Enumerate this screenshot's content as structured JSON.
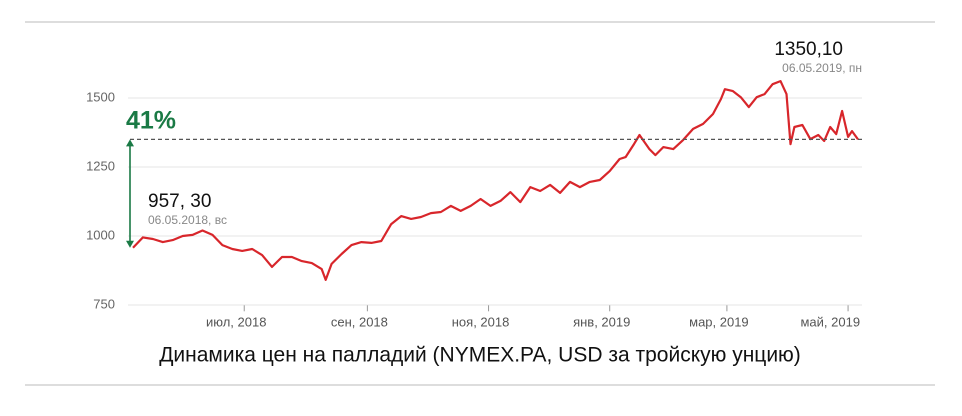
{
  "chart_data": {
    "type": "line",
    "caption": "Динамика цен на палладий (NYMEX.PA, USD за тройскую унцию)",
    "x": [
      0,
      5,
      10,
      15,
      20,
      25,
      30,
      35,
      40,
      45,
      50,
      55,
      60,
      65,
      70,
      75,
      80,
      85,
      90,
      95,
      97,
      100,
      105,
      110,
      115,
      120,
      125,
      130,
      135,
      140,
      145,
      150,
      155,
      160,
      165,
      170,
      175,
      180,
      185,
      190,
      195,
      200,
      205,
      210,
      215,
      220,
      225,
      230,
      235,
      240,
      245,
      248,
      252,
      255,
      260,
      263,
      267,
      272,
      277,
      282,
      287,
      292,
      296,
      298,
      302,
      306,
      310,
      314,
      318,
      322,
      326,
      329,
      331,
      333,
      337,
      341,
      345,
      348,
      351,
      354,
      357,
      360,
      362,
      365
    ],
    "series": [
      {
        "name": "NYMEX.PA",
        "color": "#d8262b",
        "values": [
          957.3,
          995,
          989,
          978,
          985,
          1000,
          1004,
          1020,
          1004,
          967,
          953,
          946,
          953,
          931,
          888,
          924,
          924,
          909,
          902,
          880,
          841,
          899,
          935,
          967,
          978,
          975,
          982,
          1043,
          1072,
          1062,
          1069,
          1083,
          1087,
          1109,
          1091,
          1109,
          1134,
          1109,
          1127,
          1159,
          1123,
          1177,
          1163,
          1185,
          1156,
          1196,
          1177,
          1196,
          1203,
          1235,
          1279,
          1286,
          1330,
          1366,
          1315,
          1293,
          1322,
          1315,
          1348,
          1388,
          1406,
          1442,
          1496,
          1532,
          1525,
          1503,
          1467,
          1503,
          1514,
          1550,
          1561,
          1514,
          1333,
          1395,
          1402,
          1351,
          1366,
          1344,
          1395,
          1369,
          1453,
          1359,
          1380,
          1350.1
        ]
      }
    ],
    "xlim": [
      0,
      365
    ],
    "xticks": [
      {
        "value": 56,
        "label": "июл, 2018"
      },
      {
        "value": 118,
        "label": "сен, 2018"
      },
      {
        "value": 179,
        "label": "ноя, 2018"
      },
      {
        "value": 240,
        "label": "янв, 2019"
      },
      {
        "value": 299,
        "label": "мар, 2019"
      },
      {
        "value": 360,
        "label": "май, 2019"
      }
    ],
    "ylim": [
      720,
      1580
    ],
    "yticks": [
      750,
      1000,
      1250,
      1500
    ],
    "grid": true,
    "annotations": {
      "change": "41%",
      "change_color": "#1a7a45",
      "start_label": "957, 30",
      "start_date": "06.05.2018, вс",
      "end_label": "1350,10",
      "end_date": "06.05.2019, пн"
    }
  }
}
